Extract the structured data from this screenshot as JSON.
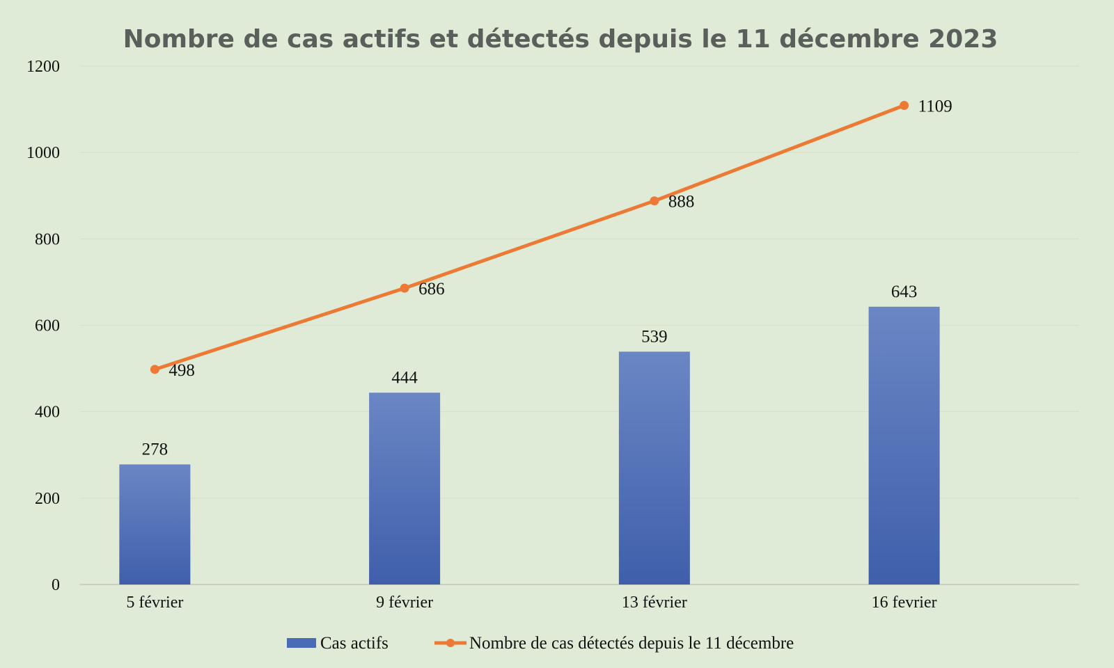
{
  "chart_data": {
    "type": "bar+line",
    "title": "Nombre de cas actifs et détectés depuis le 11 décembre 2023",
    "categories": [
      "5 février",
      "9 février",
      "13 février",
      "16 fevrier"
    ],
    "series": [
      {
        "name": "Cas actifs",
        "type": "bar",
        "color": "#4a6bb5",
        "values": [
          278,
          444,
          539,
          643
        ]
      },
      {
        "name": "Nombre de cas détectés depuis le 11 décembre",
        "type": "line",
        "color": "#ec7a35",
        "values": [
          498,
          686,
          888,
          1109
        ]
      }
    ],
    "yticks": [
      "0",
      "200",
      "400",
      "600",
      "800",
      "1000",
      "1200"
    ],
    "ylim": [
      0,
      1200
    ],
    "grid": true,
    "legend": "bottom-center",
    "xlabel": "",
    "ylabel": ""
  }
}
